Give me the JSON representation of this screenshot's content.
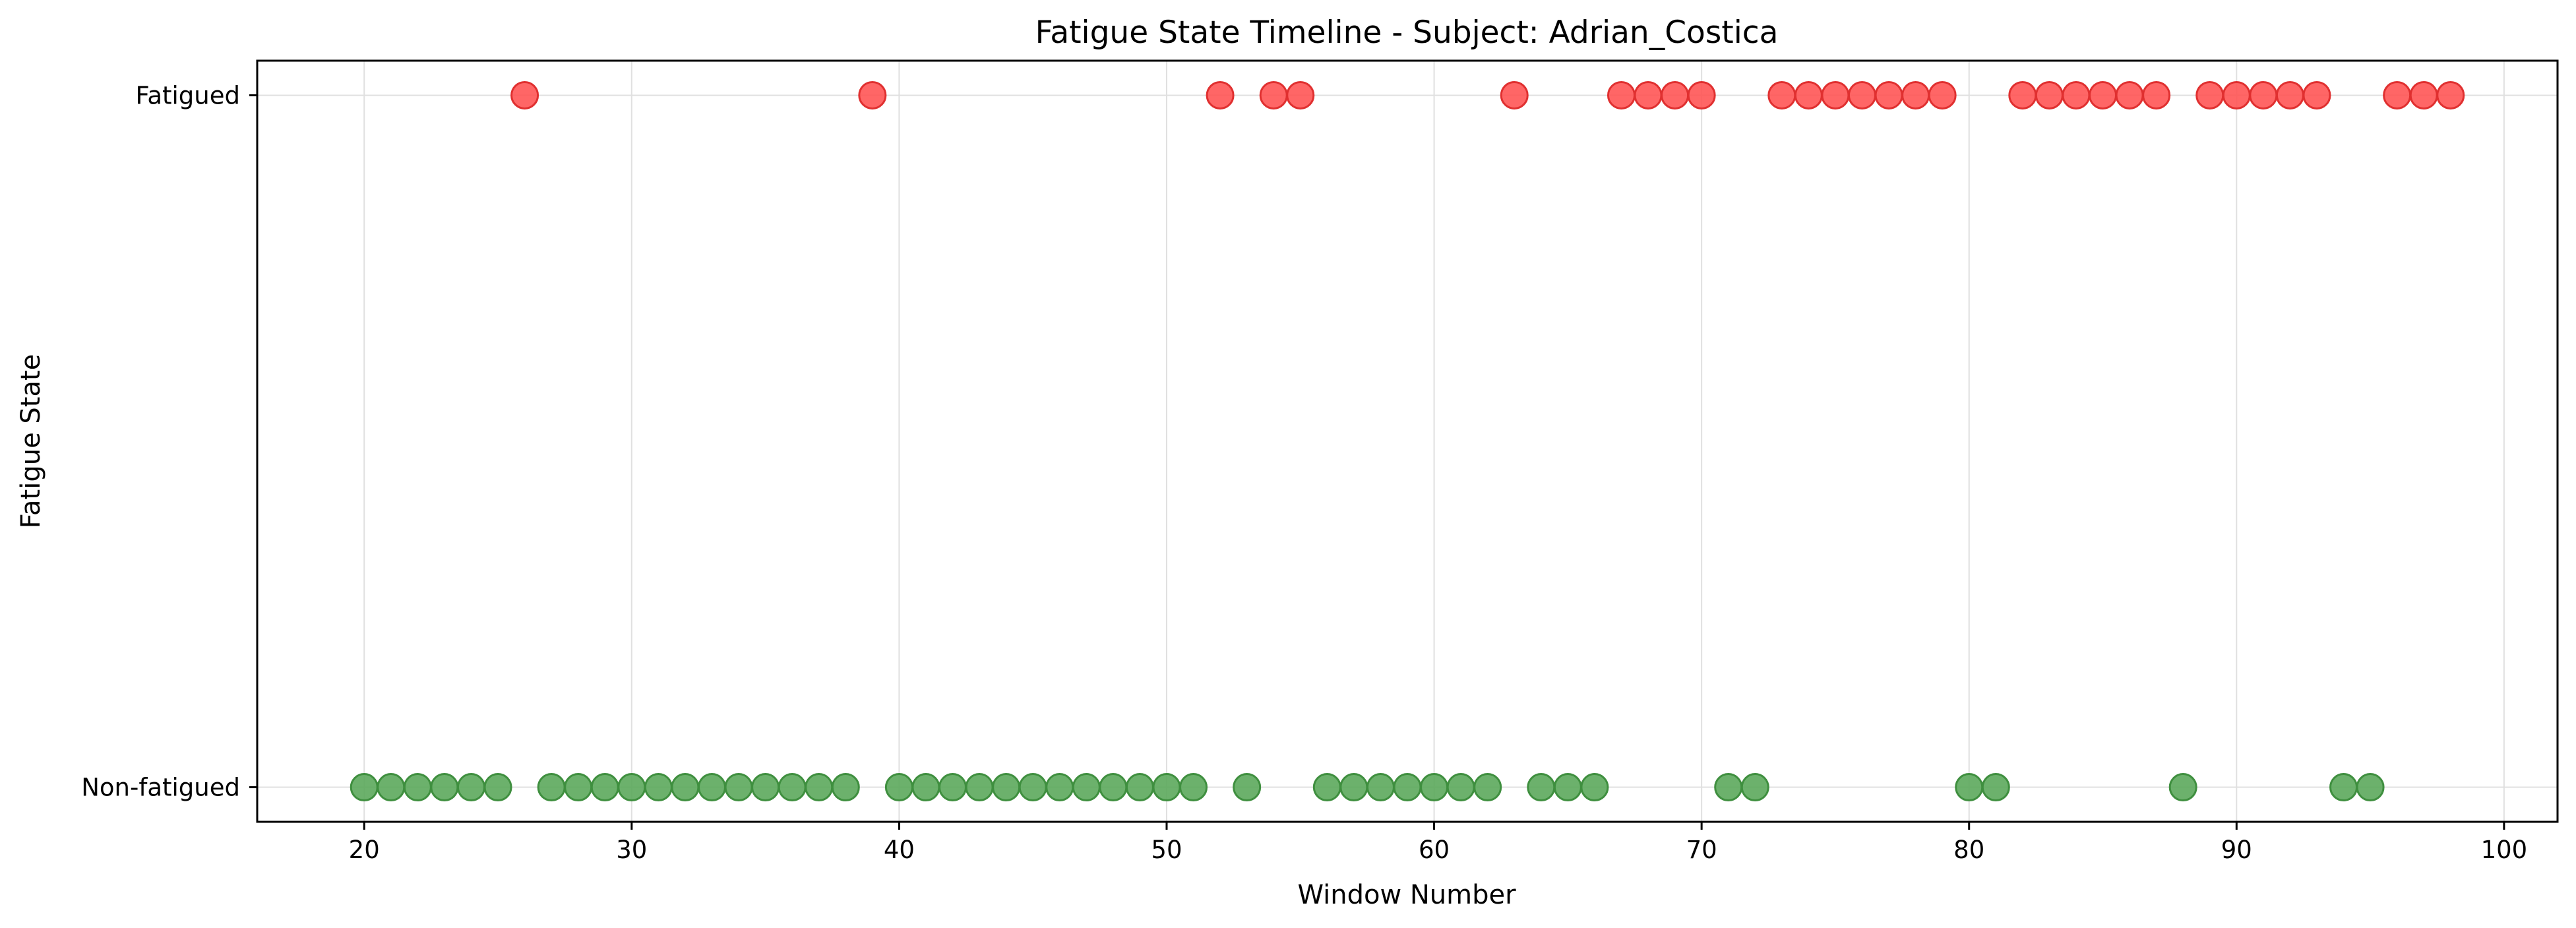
{
  "chart_data": {
    "type": "scatter",
    "title": "Fatigue State Timeline - Subject: Adrian_Costica",
    "xlabel": "Window Number",
    "ylabel": "Fatigue State",
    "xlim": [
      16,
      102
    ],
    "ylim": [
      -0.05,
      1.05
    ],
    "x_ticks": [
      20,
      30,
      40,
      50,
      60,
      70,
      80,
      90,
      100
    ],
    "x_tick_labels": [
      "20",
      "30",
      "40",
      "50",
      "60",
      "70",
      "80",
      "90",
      "100"
    ],
    "y_ticks": [
      0,
      1
    ],
    "y_tick_labels": [
      "Non-fatigued",
      "Fatigued"
    ],
    "grid": true,
    "series": [
      {
        "state": 1,
        "color": "#ff5555",
        "edge_color": "#e03030",
        "x": [
          26,
          39,
          52,
          54,
          55,
          63,
          67,
          68,
          69,
          70,
          73,
          74,
          75,
          76,
          77,
          78,
          79,
          82,
          83,
          84,
          85,
          86,
          87,
          89,
          90,
          91,
          92,
          93,
          96,
          97,
          98
        ]
      },
      {
        "state": 0,
        "color": "#5ca85c",
        "edge_color": "#3f8f3f",
        "x": [
          20,
          21,
          22,
          23,
          24,
          25,
          27,
          28,
          29,
          30,
          31,
          32,
          33,
          34,
          35,
          36,
          37,
          38,
          40,
          41,
          42,
          43,
          44,
          45,
          46,
          47,
          48,
          49,
          50,
          51,
          53,
          56,
          57,
          58,
          59,
          60,
          61,
          62,
          64,
          65,
          66,
          71,
          72,
          80,
          81,
          88,
          94,
          95
        ]
      }
    ]
  }
}
